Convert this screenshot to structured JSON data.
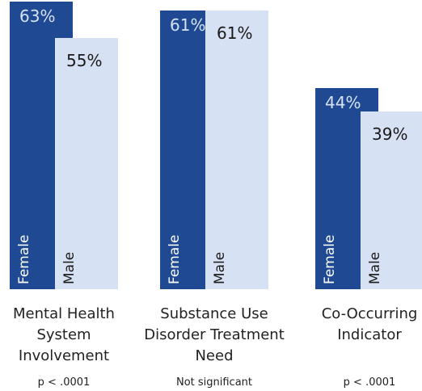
{
  "chart_data": {
    "type": "bar",
    "categories": [
      "Mental Health\nSystem\nInvolvement",
      "Substance Use\nDisorder Treatment\nNeed",
      "Co-Occurring\nIndicator"
    ],
    "series": [
      {
        "name": "Female",
        "values": [
          63,
          61,
          44
        ],
        "labels": [
          "63%",
          "61%",
          "44%"
        ],
        "color": "#1f4a93"
      },
      {
        "name": "Male",
        "values": [
          55,
          61,
          39
        ],
        "labels": [
          "55%",
          "61%",
          "39%"
        ],
        "color": "#d6e1f3"
      }
    ],
    "significance": [
      "p < .0001",
      "Not significant",
      "p < .0001"
    ],
    "ylim": [
      0,
      63
    ],
    "grid": false,
    "legend": "none",
    "title": "",
    "xlabel": "",
    "ylabel": ""
  }
}
